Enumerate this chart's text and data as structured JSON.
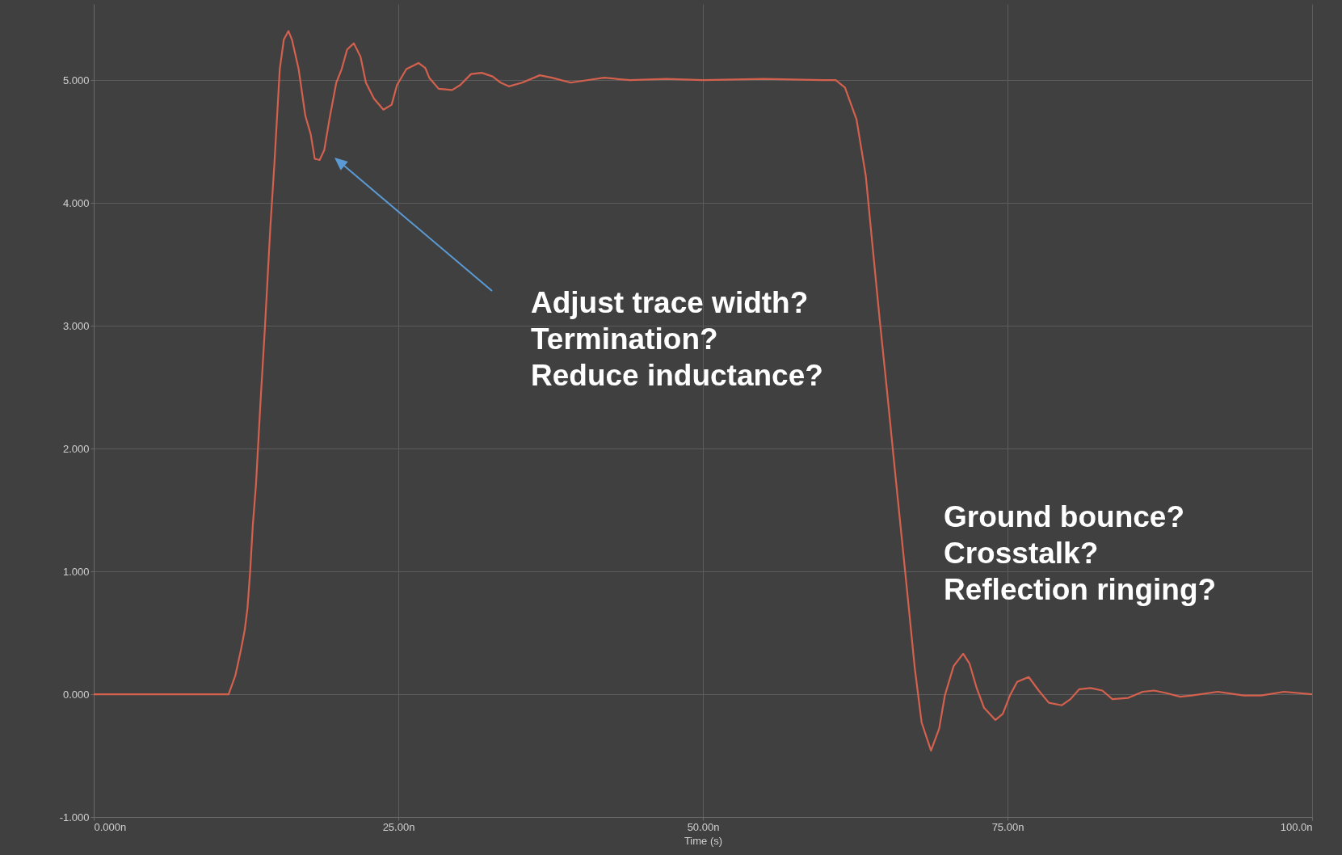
{
  "chart_data": {
    "type": "line",
    "xlabel": "Time (s)",
    "x": [
      0,
      11.07,
      11.62,
      12.06,
      12.39,
      12.62,
      12.84,
      13.06,
      13.32,
      13.7,
      14.06,
      14.5,
      14.83,
      15.27,
      15.6,
      15.98,
      16.27,
      16.82,
      17.37,
      17.81,
      18.14,
      18.54,
      18.92,
      19.36,
      19.91,
      20.35,
      20.8,
      21.35,
      21.9,
      22.34,
      23.0,
      23.78,
      24.45,
      24.89,
      25.66,
      26.66,
      27.21,
      27.54,
      28.31,
      29.42,
      30.08,
      30.97,
      31.85,
      32.74,
      33.4,
      34.07,
      35.17,
      36.61,
      37.6,
      39.15,
      40.48,
      41.9,
      44,
      47,
      50,
      55,
      60,
      60.9,
      61.66,
      62.61,
      63.37,
      63.95,
      64.51,
      65.09,
      65.66,
      66.24,
      66.81,
      67.38,
      67.95,
      68.72,
      69.39,
      69.86,
      70.58,
      71.36,
      71.88,
      72.47,
      73.07,
      74.01,
      74.61,
      75.2,
      75.79,
      76.74,
      77.56,
      78.39,
      79.46,
      80.17,
      80.88,
      81.83,
      82.78,
      83.61,
      84.91,
      86.1,
      87.04,
      87.99,
      89.17,
      90.12,
      92.25,
      94.39,
      95.81,
      97.7,
      100
    ],
    "series": [
      {
        "color": "#d4604e",
        "values": [
          0,
          0,
          0.15,
          0.35,
          0.52,
          0.7,
          1.0,
          1.38,
          1.71,
          2.4,
          3.0,
          3.81,
          4.32,
          5.09,
          5.33,
          5.4,
          5.33,
          5.09,
          4.71,
          4.56,
          4.36,
          4.35,
          4.43,
          4.69,
          4.98,
          5.09,
          5.25,
          5.3,
          5.19,
          4.98,
          4.85,
          4.76,
          4.8,
          4.96,
          5.09,
          5.14,
          5.1,
          5.02,
          4.93,
          4.92,
          4.96,
          5.05,
          5.06,
          5.03,
          4.98,
          4.95,
          4.98,
          5.04,
          5.02,
          4.98,
          5.0,
          5.02,
          5.0,
          5.01,
          5.0,
          5.01,
          5.0,
          5.0,
          4.94,
          4.68,
          4.22,
          3.62,
          3.05,
          2.49,
          1.92,
          1.35,
          0.79,
          0.22,
          -0.23,
          -0.46,
          -0.28,
          -0.01,
          0.23,
          0.33,
          0.25,
          0.05,
          -0.11,
          -0.21,
          -0.16,
          -0.01,
          0.1,
          0.14,
          0.03,
          -0.07,
          -0.09,
          -0.04,
          0.04,
          0.05,
          0.03,
          -0.04,
          -0.03,
          0.02,
          0.03,
          0.01,
          -0.02,
          -0.01,
          0.02,
          -0.01,
          -0.01,
          0.02,
          0
        ]
      }
    ],
    "xlim": [
      0,
      100
    ],
    "xticks": [
      {
        "value": 0,
        "label": "0.000n"
      },
      {
        "value": 25,
        "label": "25.00n"
      },
      {
        "value": 50,
        "label": "50.00n"
      },
      {
        "value": 75,
        "label": "75.00n"
      },
      {
        "value": 100,
        "label": "100.0n"
      }
    ],
    "ylim": [
      -1,
      5.62
    ],
    "yticks": [
      {
        "value": -1,
        "label": "-1.000"
      },
      {
        "value": 0,
        "label": "0.000"
      },
      {
        "value": 1,
        "label": "1.000"
      },
      {
        "value": 2,
        "label": "2.000"
      },
      {
        "value": 3,
        "label": "3.000"
      },
      {
        "value": 4,
        "label": "4.000"
      },
      {
        "value": 5,
        "label": "5.000"
      }
    ],
    "grid": true,
    "annotations": [
      "Adjust trace width?\nTermination?\nReduce inductance?",
      "Ground bounce?\nCrosstalk?\nReflection ringing?"
    ]
  }
}
